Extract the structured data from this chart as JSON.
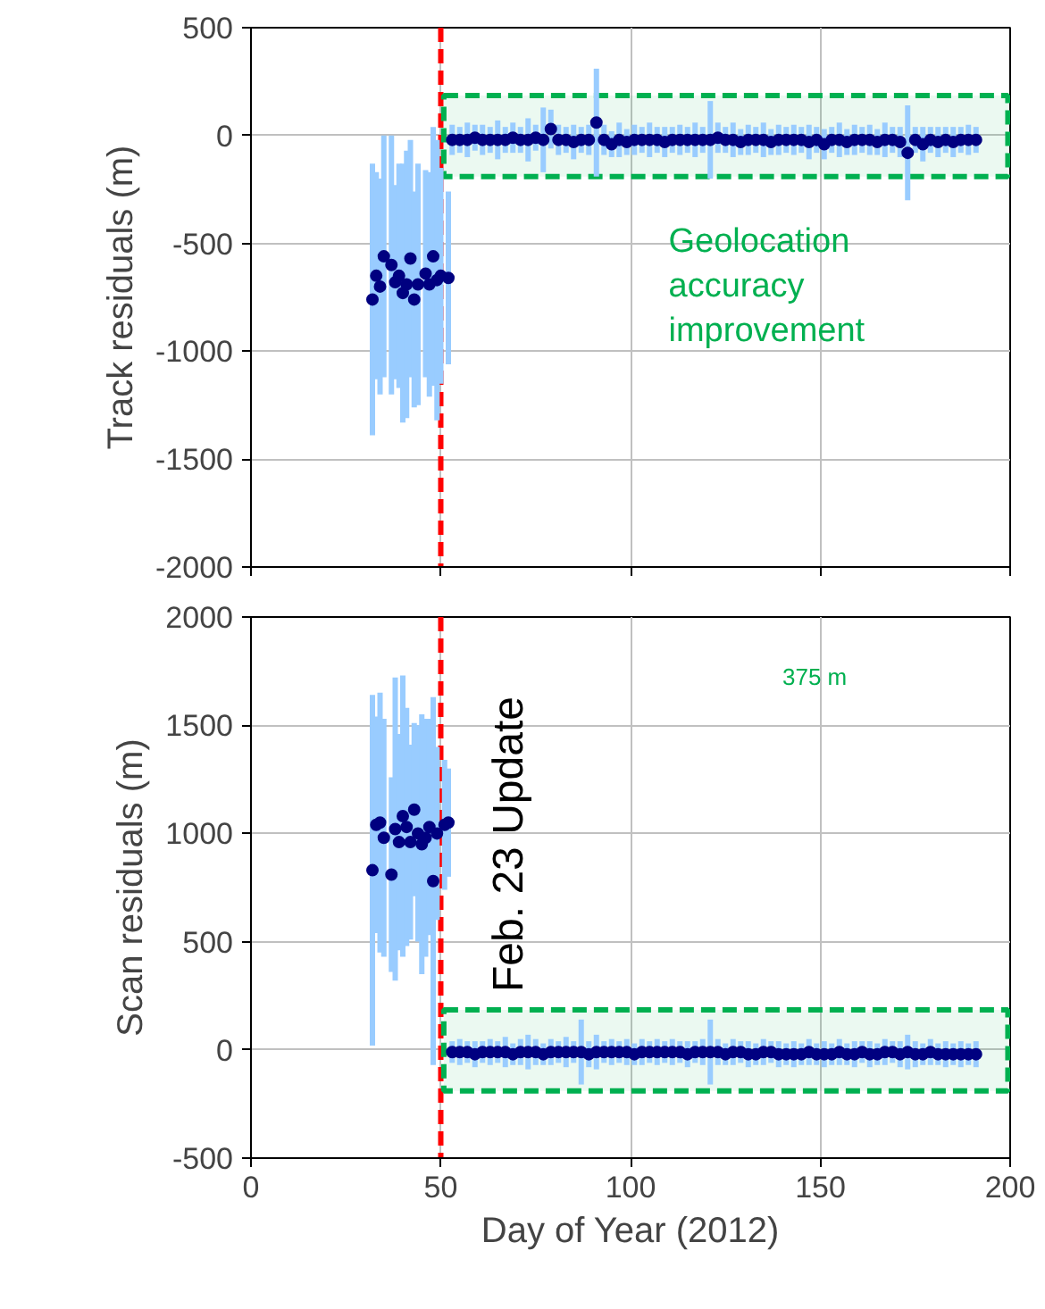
{
  "chart_data": [
    {
      "type": "scatter",
      "ylabel": "Track residuals (m)",
      "xlim": [
        0,
        200
      ],
      "xticks": [
        0,
        50,
        100,
        150,
        200
      ],
      "ylim": [
        -2000,
        500
      ],
      "yticks": [
        -2000,
        -1500,
        -1000,
        -500,
        0,
        500
      ],
      "tick_labels": "y",
      "grid": true,
      "marker": "circle",
      "series": [
        {
          "color": "#000080",
          "x": [
            32,
            33,
            34,
            35,
            37,
            38,
            39,
            40,
            41,
            42,
            43,
            44,
            46,
            47,
            48,
            49,
            50,
            52
          ],
          "values": [
            -760,
            -650,
            -700,
            -560,
            -600,
            -680,
            -650,
            -730,
            -690,
            -570,
            -760,
            -690,
            -640,
            -690,
            -560,
            -670,
            -650,
            -660
          ],
          "errors": [
            630,
            480,
            500,
            560,
            600,
            450,
            520,
            600,
            620,
            550,
            500,
            560,
            480,
            520,
            600,
            650,
            500,
            400
          ]
        },
        {
          "color": "#000080",
          "x": [
            53,
            55,
            57,
            59,
            61,
            63,
            65,
            67,
            69,
            71,
            73,
            75,
            77,
            79,
            81,
            83,
            85,
            87,
            89,
            91,
            93,
            95,
            97,
            99,
            101,
            103,
            105,
            107,
            109,
            111,
            113,
            115,
            117,
            119,
            121,
            123,
            125,
            127,
            129,
            131,
            133,
            135,
            137,
            139,
            141,
            143,
            145,
            147,
            149,
            151,
            153,
            155,
            157,
            159,
            161,
            163,
            165,
            167,
            169,
            171,
            173,
            175,
            177,
            179,
            181,
            183,
            185,
            187,
            189,
            191
          ],
          "values": [
            -20,
            -20,
            -20,
            -10,
            -20,
            -20,
            -20,
            -20,
            -10,
            -20,
            -20,
            -10,
            -20,
            30,
            -20,
            -20,
            -30,
            -20,
            -20,
            60,
            -20,
            -40,
            -20,
            -30,
            -20,
            -20,
            -20,
            -20,
            -30,
            -20,
            -20,
            -20,
            -20,
            -20,
            -20,
            -10,
            -20,
            -20,
            -30,
            -20,
            -20,
            -20,
            -30,
            -20,
            -20,
            -20,
            -20,
            -30,
            -20,
            -40,
            -20,
            -20,
            -30,
            -20,
            -20,
            -20,
            -30,
            -20,
            -20,
            -30,
            -80,
            -20,
            -40,
            -20,
            -30,
            -20,
            -30,
            -20,
            -20,
            -20
          ],
          "errors": [
            70,
            60,
            80,
            60,
            70,
            60,
            90,
            60,
            70,
            60,
            100,
            60,
            150,
            90,
            70,
            60,
            80,
            60,
            70,
            250,
            70,
            60,
            80,
            60,
            70,
            60,
            80,
            60,
            70,
            60,
            70,
            60,
            80,
            60,
            180,
            70,
            60,
            80,
            60,
            70,
            60,
            80,
            60,
            70,
            60,
            70,
            60,
            80,
            60,
            70,
            60,
            80,
            60,
            70,
            60,
            70,
            60,
            80,
            60,
            70,
            220,
            60,
            80,
            60,
            70,
            60,
            70,
            60,
            70,
            60
          ]
        }
      ],
      "ref_lines": [
        {
          "axis": "x",
          "value": 50,
          "color": "#ff0000",
          "line_style": "dashed"
        }
      ],
      "bands": [
        {
          "axis": "y",
          "from": -190,
          "to": 185,
          "color": "#00b050"
        }
      ],
      "annotations": [
        "Geolocation\naccuracy\nimprovement"
      ]
    },
    {
      "type": "scatter",
      "xlabel": "Day of Year (2012)",
      "ylabel": "Scan residuals (m)",
      "xlim": [
        0,
        200
      ],
      "xticks": [
        0,
        50,
        100,
        150,
        200
      ],
      "ylim": [
        -500,
        2000
      ],
      "yticks": [
        -500,
        0,
        500,
        1000,
        1500,
        2000
      ],
      "grid": true,
      "marker": "circle",
      "series": [
        {
          "color": "#000080",
          "x": [
            32,
            33,
            34,
            35,
            37,
            38,
            39,
            40,
            41,
            42,
            43,
            44,
            45,
            46,
            47,
            48,
            49,
            51,
            52
          ],
          "values": [
            830,
            1040,
            1050,
            980,
            810,
            1020,
            960,
            1080,
            1030,
            960,
            1110,
            1000,
            950,
            980,
            1030,
            780,
            1000,
            1040,
            1050
          ],
          "errors": [
            810,
            500,
            600,
            550,
            450,
            700,
            500,
            650,
            550,
            450,
            400,
            500,
            600,
            550,
            500,
            850,
            400,
            300,
            250
          ]
        },
        {
          "color": "#000080",
          "x": [
            53,
            55,
            57,
            59,
            61,
            63,
            65,
            67,
            69,
            71,
            73,
            75,
            77,
            79,
            81,
            83,
            85,
            87,
            89,
            91,
            93,
            95,
            97,
            99,
            101,
            103,
            105,
            107,
            109,
            111,
            113,
            115,
            117,
            119,
            121,
            123,
            125,
            127,
            129,
            131,
            133,
            135,
            137,
            139,
            141,
            143,
            145,
            147,
            149,
            151,
            153,
            155,
            157,
            159,
            161,
            163,
            165,
            167,
            169,
            171,
            173,
            175,
            177,
            179,
            181,
            183,
            185,
            187,
            189,
            191
          ],
          "values": [
            -10,
            -10,
            -10,
            -20,
            -10,
            -10,
            -10,
            -10,
            -20,
            -10,
            -10,
            -10,
            -20,
            -10,
            -10,
            -10,
            -10,
            -10,
            -20,
            -10,
            -10,
            -10,
            -10,
            -10,
            -20,
            -10,
            -10,
            -10,
            -10,
            -10,
            -10,
            -20,
            -10,
            -10,
            -10,
            -10,
            -20,
            -10,
            -10,
            -20,
            -20,
            -10,
            -10,
            -20,
            -20,
            -20,
            -20,
            -10,
            -20,
            -20,
            -20,
            -10,
            -20,
            -20,
            -10,
            -20,
            -20,
            -10,
            -10,
            -20,
            -10,
            -20,
            -20,
            -10,
            -20,
            -20,
            -20,
            -20,
            -20,
            -20
          ],
          "errors": [
            50,
            60,
            50,
            60,
            50,
            60,
            50,
            70,
            50,
            60,
            80,
            60,
            50,
            60,
            50,
            70,
            50,
            150,
            60,
            80,
            50,
            60,
            50,
            60,
            50,
            60,
            50,
            60,
            50,
            60,
            50,
            60,
            50,
            60,
            150,
            60,
            50,
            60,
            50,
            60,
            50,
            60,
            50,
            60,
            50,
            60,
            50,
            60,
            50,
            60,
            50,
            60,
            50,
            60,
            50,
            60,
            50,
            60,
            50,
            60,
            80,
            60,
            50,
            60,
            50,
            60,
            50,
            60,
            50,
            60
          ]
        }
      ],
      "ref_lines": [
        {
          "axis": "x",
          "value": 50,
          "color": "#ff0000",
          "line_style": "dashed"
        }
      ],
      "bands": [
        {
          "axis": "y",
          "from": -190,
          "to": 185,
          "color": "#00b050"
        }
      ],
      "annotations": [
        "Feb. 23 Update",
        "375 m"
      ]
    }
  ]
}
